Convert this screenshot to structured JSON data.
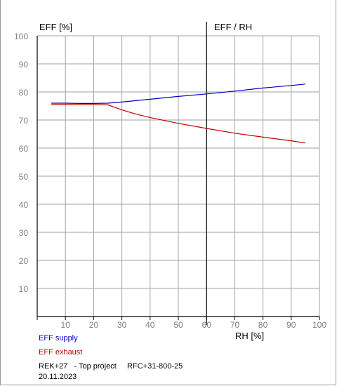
{
  "chart_data": {
    "type": "line",
    "left_title": "EFF [%]",
    "right_title": "EFF / RH",
    "xlabel": "RH [%]",
    "xlim": [
      0,
      100
    ],
    "ylim": [
      0,
      100
    ],
    "xticks": [
      10,
      20,
      30,
      40,
      50,
      60,
      70,
      80,
      90,
      100
    ],
    "yticks": [
      10,
      20,
      30,
      40,
      50,
      60,
      70,
      80,
      90,
      100
    ],
    "grid": true,
    "marker_line_x": 60,
    "series": [
      {
        "name": "EFF supply",
        "color": "#0000c0",
        "x": [
          5,
          10,
          15,
          20,
          25,
          30,
          40,
          50,
          60,
          70,
          80,
          90,
          95
        ],
        "y": [
          76,
          76,
          75.9,
          75.9,
          76,
          76.4,
          77.4,
          78.4,
          79.3,
          80.3,
          81.4,
          82.3,
          82.8
        ]
      },
      {
        "name": "EFF exhaust",
        "color": "#c00000",
        "x": [
          5,
          10,
          15,
          20,
          25,
          30,
          35,
          40,
          50,
          60,
          70,
          80,
          90,
          95
        ],
        "y": [
          75.5,
          75.5,
          75.5,
          75.5,
          75.4,
          73.6,
          72.1,
          70.9,
          68.8,
          67,
          65.3,
          63.9,
          62.6,
          61.8
        ]
      }
    ]
  },
  "legend": {
    "supply": "EFF supply",
    "exhaust": "EFF exhaust"
  },
  "footer": {
    "line1": "REK+27   - Top project     RFC+31-800-25",
    "line2": "20.11.2023"
  }
}
